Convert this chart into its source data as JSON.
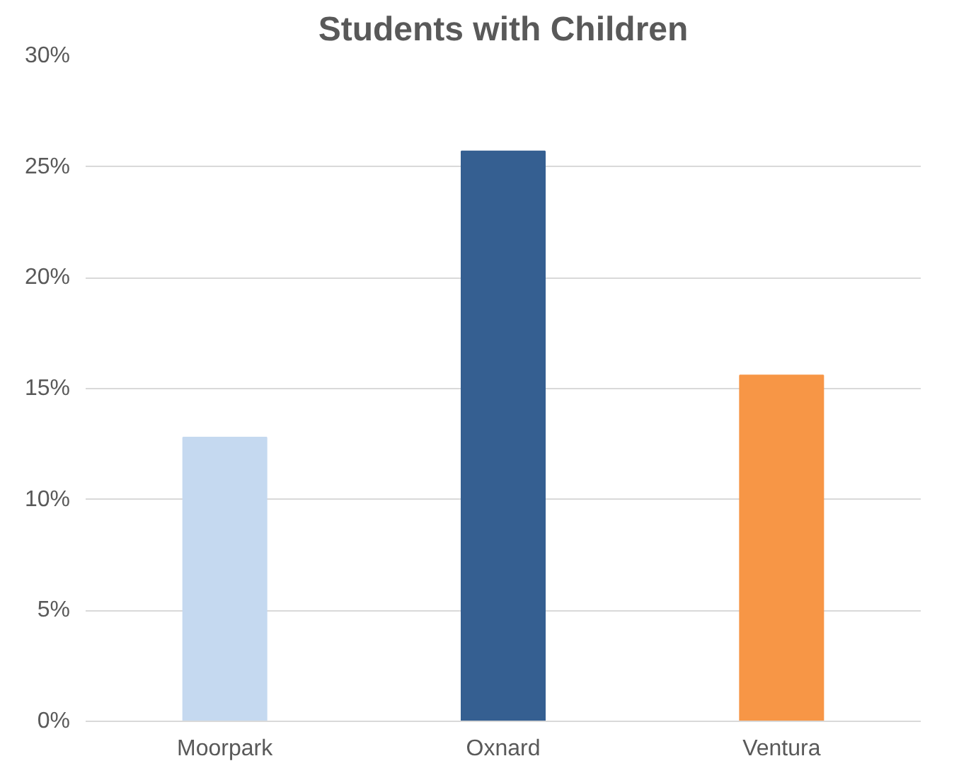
{
  "chart_data": {
    "type": "bar",
    "title": "Students with Children",
    "categories": [
      "Moorpark",
      "Oxnard",
      "Ventura"
    ],
    "values": [
      12.8,
      25.7,
      15.6
    ],
    "colors": [
      "#c5d9f0",
      "#355f91",
      "#f79646"
    ],
    "ylim": [
      0,
      30
    ],
    "yticks": [
      {
        "value": 0,
        "label": "0%"
      },
      {
        "value": 5,
        "label": "5%"
      },
      {
        "value": 10,
        "label": "10%"
      },
      {
        "value": 15,
        "label": "15%"
      },
      {
        "value": 20,
        "label": "20%"
      },
      {
        "value": 25,
        "label": "25%"
      },
      {
        "value": 30,
        "label": "30%"
      }
    ],
    "grid": "y"
  }
}
